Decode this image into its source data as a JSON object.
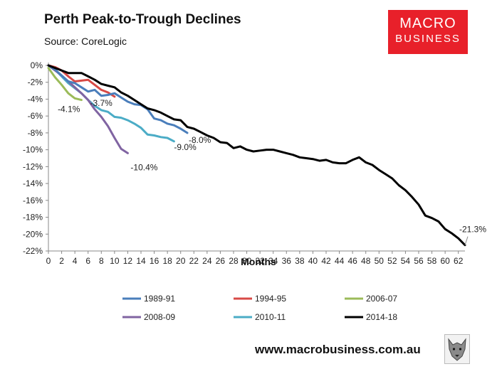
{
  "header": {
    "title": "Perth Peak-to-Trough Declines",
    "subtitle": "Source: CoreLogic"
  },
  "logo": {
    "line1": "MACRO",
    "line2": "BUSINESS",
    "color": "#e8202a"
  },
  "footer": {
    "website": "www.macrobusiness.com.au",
    "emblem_icon": "wolf-icon"
  },
  "chart_data": {
    "type": "line",
    "title": "Perth Peak-to-Trough Declines",
    "subtitle": "Source: CoreLogic",
    "xlabel": "Months",
    "ylabel": "",
    "xlim": [
      0,
      63
    ],
    "ylim": [
      -22,
      0
    ],
    "x_ticks": [
      0,
      2,
      4,
      6,
      8,
      10,
      12,
      14,
      16,
      18,
      20,
      22,
      24,
      26,
      28,
      30,
      32,
      34,
      36,
      38,
      40,
      42,
      44,
      46,
      48,
      50,
      52,
      54,
      56,
      58,
      60,
      62
    ],
    "y_ticks": [
      0,
      -2,
      -4,
      -6,
      -8,
      -10,
      -12,
      -14,
      -16,
      -18,
      -20,
      -22
    ],
    "y_tick_labels": [
      "0%",
      "-2%",
      "-4%",
      "-6%",
      "-8%",
      "-10%",
      "-12%",
      "-14%",
      "-16%",
      "-18%",
      "-20%",
      "-22%"
    ],
    "grid": false,
    "legend_position": "bottom",
    "series": [
      {
        "name": "1989-91",
        "color": "#4a7ebb",
        "end_label": "-8.0%",
        "x": [
          0,
          1,
          2,
          3,
          4,
          5,
          6,
          7,
          8,
          9,
          10,
          11,
          12,
          13,
          14,
          15,
          16,
          17,
          18,
          19,
          20,
          21
        ],
        "y": [
          0,
          -0.5,
          -1.2,
          -1.9,
          -2.1,
          -2.6,
          -3.1,
          -2.9,
          -3.6,
          -3.5,
          -3.3,
          -3.8,
          -4.3,
          -4.6,
          -4.7,
          -5.2,
          -6.3,
          -6.5,
          -6.9,
          -7.1,
          -7.5,
          -8.0
        ]
      },
      {
        "name": "1994-95",
        "color": "#d84a46",
        "end_label": "-3.7%",
        "x": [
          0,
          1,
          2,
          3,
          4,
          5,
          6,
          7,
          8,
          9,
          10
        ],
        "y": [
          0,
          -0.2,
          -0.6,
          -1.3,
          -1.9,
          -1.8,
          -1.7,
          -2.3,
          -2.9,
          -3.2,
          -3.7
        ]
      },
      {
        "name": "2006-07",
        "color": "#9bbb59",
        "end_label": "-4.1%",
        "x": [
          0,
          1,
          2,
          3,
          4,
          5
        ],
        "y": [
          -0.3,
          -1.4,
          -2.3,
          -3.3,
          -3.9,
          -4.1
        ]
      },
      {
        "name": "2008-09",
        "color": "#8064a2",
        "end_label": "-10.4%",
        "x": [
          0,
          1,
          2,
          3,
          4,
          5,
          6,
          7,
          8,
          9,
          10,
          11,
          12
        ],
        "y": [
          0,
          -0.6,
          -1.2,
          -1.9,
          -2.6,
          -3.3,
          -4.1,
          -5.2,
          -6.1,
          -7.2,
          -8.6,
          -9.9,
          -10.4
        ]
      },
      {
        "name": "2010-11",
        "color": "#4bacc6",
        "end_label": "-9.0%",
        "x": [
          0,
          1,
          2,
          3,
          4,
          5,
          6,
          7,
          8,
          9,
          10,
          11,
          12,
          13,
          14,
          15,
          16,
          17,
          18,
          19
        ],
        "y": [
          0,
          -0.5,
          -1.3,
          -2.1,
          -2.7,
          -3.3,
          -4.1,
          -4.8,
          -5.3,
          -5.5,
          -6.1,
          -6.2,
          -6.5,
          -6.9,
          -7.4,
          -8.2,
          -8.3,
          -8.5,
          -8.6,
          -9.0
        ]
      },
      {
        "name": "2014-18",
        "color": "#000000",
        "end_label": "-21.3%",
        "x": [
          0,
          1,
          2,
          3,
          4,
          5,
          6,
          7,
          8,
          9,
          10,
          11,
          12,
          13,
          14,
          15,
          16,
          17,
          18,
          19,
          20,
          21,
          22,
          23,
          24,
          25,
          26,
          27,
          28,
          29,
          30,
          31,
          32,
          33,
          34,
          35,
          36,
          37,
          38,
          39,
          40,
          41,
          42,
          43,
          44,
          45,
          46,
          47,
          48,
          49,
          50,
          51,
          52,
          53,
          54,
          55,
          56,
          57,
          58,
          59,
          60,
          61,
          62,
          63
        ],
        "y": [
          0,
          -0.3,
          -0.6,
          -0.9,
          -0.9,
          -0.9,
          -1.3,
          -1.7,
          -2.2,
          -2.4,
          -2.6,
          -3.2,
          -3.6,
          -4.1,
          -4.6,
          -5.1,
          -5.3,
          -5.6,
          -6.0,
          -6.4,
          -6.5,
          -7.3,
          -7.5,
          -7.9,
          -8.3,
          -8.6,
          -9.1,
          -9.2,
          -9.8,
          -9.6,
          -10.0,
          -10.2,
          -10.1,
          -10.0,
          -10.0,
          -10.2,
          -10.4,
          -10.6,
          -10.9,
          -11.0,
          -11.1,
          -11.3,
          -11.2,
          -11.5,
          -11.6,
          -11.6,
          -11.2,
          -10.9,
          -11.5,
          -11.8,
          -12.4,
          -12.9,
          -13.4,
          -14.2,
          -14.8,
          -15.6,
          -16.5,
          -17.8,
          -18.1,
          -18.5,
          -19.4,
          -19.9,
          -20.5,
          -21.3
        ]
      }
    ]
  }
}
